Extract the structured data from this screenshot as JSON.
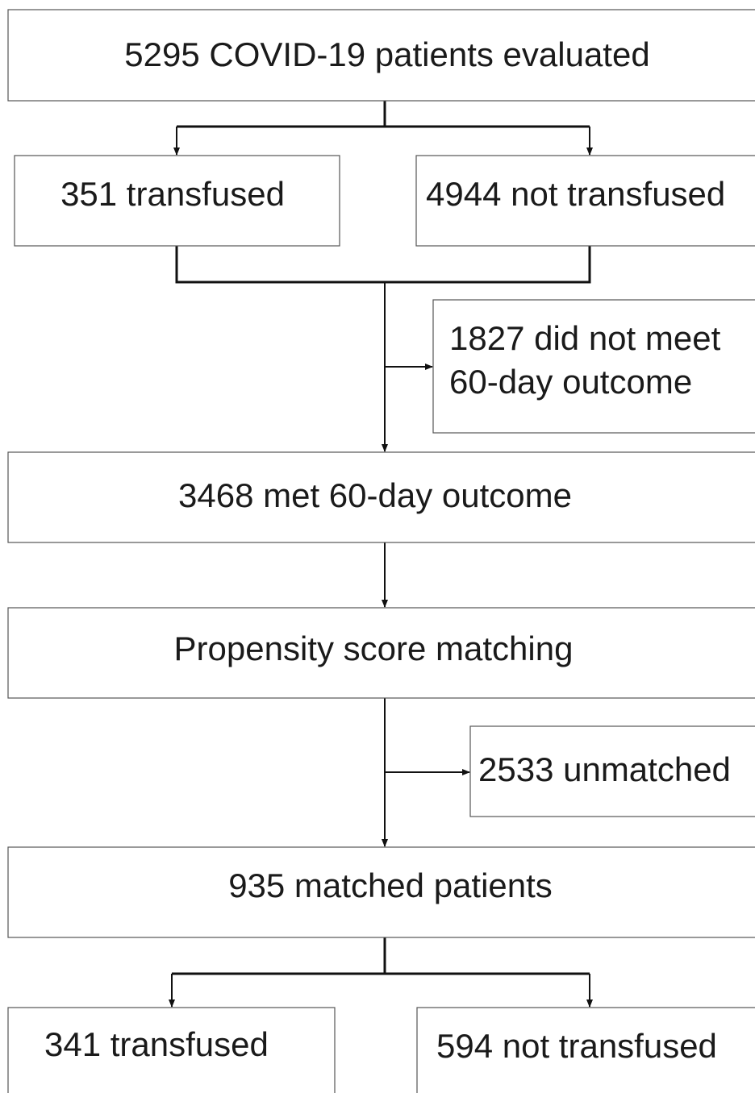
{
  "nodes": [
    {
      "label": "5295 COVID-19 patients evaluated"
    },
    {
      "label": "351 transfused"
    },
    {
      "label": "4944 not transfused"
    },
    {
      "lines": [
        "1827 did not meet",
        "60-day outcome"
      ]
    },
    {
      "label": "3468 met 60-day outcome"
    },
    {
      "label": "Propensity score matching"
    },
    {
      "label": "2533 unmatched"
    },
    {
      "label": "935 matched patients"
    },
    {
      "label": "341 transfused"
    },
    {
      "label": "594 not transfused"
    }
  ]
}
